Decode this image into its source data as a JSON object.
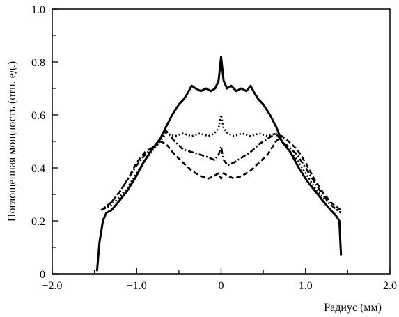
{
  "chart_data": {
    "type": "line",
    "xlabel": "Радиус (мм)",
    "ylabel": "Поглощенная мощность (отн. ед.)",
    "xlim": [
      -2.0,
      2.0
    ],
    "ylim": [
      0,
      1.0
    ],
    "x_ticks": [
      {
        "value": -2.0,
        "label": "−2.0"
      },
      {
        "value": -1.0,
        "label": "−1.0"
      },
      {
        "value": 0,
        "label": "0"
      },
      {
        "value": 1.0,
        "label": "1.0"
      },
      {
        "value": 2.0,
        "label": "2.0"
      }
    ],
    "x_minor_ticks": [
      -1.5,
      -0.5,
      0.5,
      1.5
    ],
    "y_ticks": [
      {
        "value": 0,
        "label": "0"
      },
      {
        "value": 0.2,
        "label": "0.2"
      },
      {
        "value": 0.4,
        "label": "0.4"
      },
      {
        "value": 0.6,
        "label": "0.6"
      },
      {
        "value": 0.8,
        "label": "0.8"
      },
      {
        "value": 1.0,
        "label": "1.0"
      }
    ],
    "y_minor_ticks": [
      0.1,
      0.3,
      0.5,
      0.7,
      0.9
    ],
    "grid": false,
    "legend": "none",
    "series": [
      {
        "style": "solid",
        "x": [
          -1.47,
          -1.44,
          -1.4,
          -1.36,
          -1.3,
          -1.22,
          -1.12,
          -1.02,
          -0.92,
          -0.82,
          -0.72,
          -0.66,
          -0.58,
          -0.5,
          -0.44,
          -0.4,
          -0.35,
          -0.3,
          -0.24,
          -0.18,
          -0.12,
          -0.07,
          -0.03,
          0,
          0.03,
          0.07,
          0.12,
          0.18,
          0.24,
          0.3,
          0.35,
          0.4,
          0.44,
          0.5,
          0.58,
          0.66,
          0.72,
          0.82,
          0.92,
          1.02,
          1.12,
          1.22,
          1.3,
          1.36,
          1.4,
          1.42
        ],
        "y": [
          0.01,
          0.12,
          0.2,
          0.23,
          0.24,
          0.27,
          0.31,
          0.36,
          0.42,
          0.47,
          0.51,
          0.55,
          0.6,
          0.64,
          0.66,
          0.68,
          0.71,
          0.7,
          0.69,
          0.7,
          0.69,
          0.7,
          0.73,
          0.82,
          0.73,
          0.7,
          0.71,
          0.69,
          0.7,
          0.69,
          0.71,
          0.68,
          0.66,
          0.64,
          0.6,
          0.55,
          0.5,
          0.46,
          0.4,
          0.35,
          0.31,
          0.27,
          0.24,
          0.22,
          0.2,
          0.07
        ]
      },
      {
        "style": "dotted",
        "x": [
          -1.42,
          -1.3,
          -1.2,
          -1.1,
          -1.0,
          -0.9,
          -0.8,
          -0.72,
          -0.65,
          -0.55,
          -0.45,
          -0.35,
          -0.25,
          -0.15,
          -0.08,
          -0.03,
          0,
          0.03,
          0.08,
          0.15,
          0.25,
          0.35,
          0.45,
          0.55,
          0.65,
          0.72,
          0.8,
          0.9,
          1.0,
          1.1,
          1.2,
          1.3,
          1.42
        ],
        "y": [
          0.24,
          0.26,
          0.29,
          0.33,
          0.38,
          0.43,
          0.47,
          0.5,
          0.53,
          0.52,
          0.53,
          0.52,
          0.53,
          0.52,
          0.53,
          0.55,
          0.6,
          0.55,
          0.53,
          0.52,
          0.53,
          0.52,
          0.53,
          0.52,
          0.53,
          0.5,
          0.47,
          0.43,
          0.38,
          0.33,
          0.29,
          0.26,
          0.23
        ]
      },
      {
        "style": "dashed",
        "x": [
          -1.42,
          -1.3,
          -1.2,
          -1.1,
          -1.0,
          -0.9,
          -0.8,
          -0.72,
          -0.65,
          -0.55,
          -0.45,
          -0.35,
          -0.25,
          -0.15,
          -0.08,
          -0.03,
          0,
          0.03,
          0.08,
          0.15,
          0.25,
          0.35,
          0.45,
          0.55,
          0.65,
          0.72,
          0.8,
          0.9,
          1.0,
          1.1,
          1.2,
          1.3,
          1.42
        ],
        "y": [
          0.24,
          0.27,
          0.31,
          0.36,
          0.42,
          0.46,
          0.48,
          0.5,
          0.49,
          0.45,
          0.42,
          0.39,
          0.37,
          0.36,
          0.37,
          0.38,
          0.36,
          0.38,
          0.37,
          0.36,
          0.37,
          0.39,
          0.42,
          0.45,
          0.5,
          0.52,
          0.5,
          0.47,
          0.42,
          0.36,
          0.31,
          0.27,
          0.24
        ]
      },
      {
        "style": "dashdot",
        "x": [
          -1.42,
          -1.3,
          -1.2,
          -1.1,
          -1.0,
          -0.9,
          -0.8,
          -0.72,
          -0.65,
          -0.55,
          -0.45,
          -0.35,
          -0.25,
          -0.15,
          -0.08,
          -0.03,
          0,
          0.03,
          0.08,
          0.15,
          0.25,
          0.35,
          0.45,
          0.55,
          0.65,
          0.72,
          0.8,
          0.9,
          1.0,
          1.1,
          1.2,
          1.3,
          1.42
        ],
        "y": [
          0.24,
          0.27,
          0.31,
          0.36,
          0.41,
          0.45,
          0.48,
          0.51,
          0.54,
          0.5,
          0.47,
          0.46,
          0.45,
          0.44,
          0.43,
          0.45,
          0.48,
          0.43,
          0.41,
          0.42,
          0.44,
          0.46,
          0.49,
          0.51,
          0.53,
          0.5,
          0.48,
          0.45,
          0.4,
          0.35,
          0.3,
          0.26,
          0.23
        ]
      }
    ]
  }
}
